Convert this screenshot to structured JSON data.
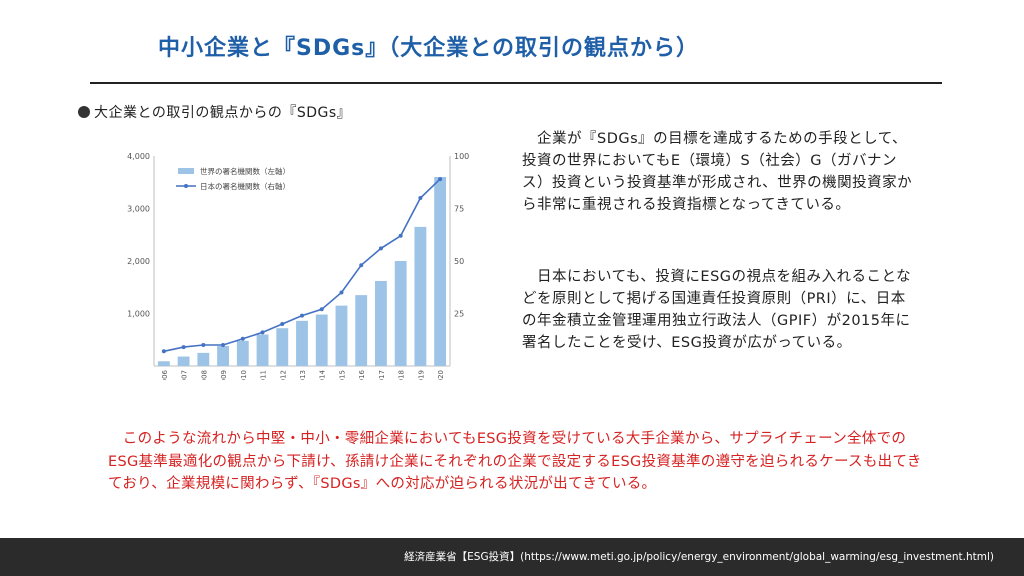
{
  "title": "中小企業と『SDGs』（大企業との取引の観点から）",
  "section_heading": "大企業との取引の観点からの『SDGs』",
  "paragraphs": [
    "　企業が『SDGs』の目標を達成するための手段として、投資の世界においてもE（環境）S（社会）G（ガバナンス）投資という投資基準が形成され、世界の機関投資家から非常に重視される投資指標となってきている。",
    "　日本においても、投資にESGの視点を組み入れることなどを原則として掲げる国連責任投資原則（PRI）に、日本の年金積立金管理運用独立行政法人（GPIF）が2015年に署名したことを受け、ESG投資が広がっている。"
  ],
  "highlight_text": "　このような流れから中堅・中小・零細企業においてもESG投資を受けている大手企業から、サプライチェーン全体でのESG基準最適化の観点から下請け、孫請け企業にそれぞれの企業で設定するESG投資基準の遵守を迫られるケースも出てきており、企業規模に関わらず、『SDGs』への対応が迫られる状況が出てきている。",
  "footer_source": "経済産業省【ESG投資】(https://www.meti.go.jp/policy/energy_environment/global_warming/esg_investment.html)",
  "colors": {
    "title": "#1f5fa8",
    "bar": "#9dc3e6",
    "line": "#4472c4",
    "highlight": "#d62222",
    "footer_bg": "#2b2b2b"
  },
  "chart_data": {
    "type": "bar",
    "categories": [
      "2006",
      "2007",
      "2008",
      "2009",
      "2010",
      "2011",
      "2012",
      "2013",
      "2014",
      "2015",
      "2016",
      "2017",
      "2018",
      "2019",
      "2020"
    ],
    "series": [
      {
        "name": "世界の署名機関数（左軸）",
        "type": "bar",
        "axis": "left",
        "values": [
          90,
          180,
          250,
          380,
          480,
          600,
          720,
          860,
          980,
          1150,
          1350,
          1620,
          2000,
          2650,
          3600
        ]
      },
      {
        "name": "日本の署名機関数（右軸）",
        "type": "line",
        "axis": "right",
        "values": [
          7,
          9,
          10,
          10,
          13,
          16,
          20,
          24,
          27,
          35,
          48,
          56,
          62,
          80,
          89
        ]
      }
    ],
    "left_axis": {
      "ylim": [
        0,
        4000
      ],
      "ticks": [
        "1,000",
        "2,000",
        "3,000",
        "4,000"
      ],
      "tick_values": [
        1000,
        2000,
        3000,
        4000
      ]
    },
    "right_axis": {
      "ylim": [
        0,
        100
      ],
      "ticks": [
        "25",
        "50",
        "75",
        "100"
      ],
      "tick_values": [
        25,
        50,
        75,
        100
      ]
    },
    "legend": "top-left",
    "grid": false
  }
}
